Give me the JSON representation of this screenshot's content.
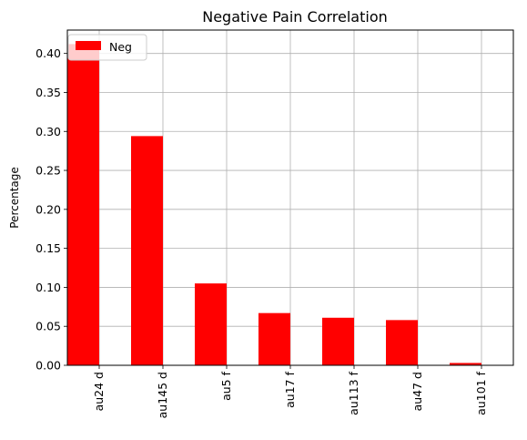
{
  "chart_data": {
    "type": "bar",
    "title": "Negative Pain Correlation",
    "xlabel": "",
    "ylabel": "Percentage",
    "categories": [
      "au24 d",
      "au145 d",
      "au5 f",
      "au17 f",
      "au113 f",
      "au47 d",
      "au101 f"
    ],
    "series": [
      {
        "name": "Neg",
        "color": "#ff0000",
        "values": [
          0.412,
          0.294,
          0.105,
          0.067,
          0.061,
          0.058,
          0.003
        ]
      }
    ],
    "ylim": [
      0,
      0.43
    ],
    "yticks": [
      0.0,
      0.05,
      0.1,
      0.15,
      0.2,
      0.25,
      0.3,
      0.35,
      0.4
    ],
    "ytick_labels": [
      "0.00",
      "0.05",
      "0.10",
      "0.15",
      "0.20",
      "0.25",
      "0.30",
      "0.35",
      "0.40"
    ],
    "grid": true,
    "legend_position": "top-left",
    "xtick_rotation": "vertical"
  }
}
